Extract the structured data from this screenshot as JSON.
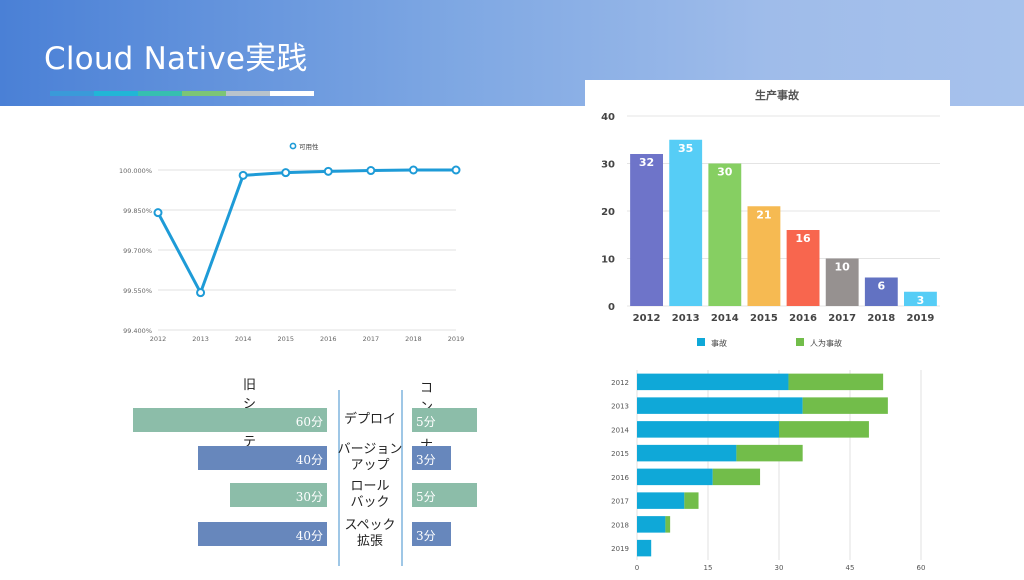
{
  "header": {
    "title": "Cloud Native実践"
  },
  "colors": {
    "stripes": [
      "#3a9ad9",
      "#21b6d6",
      "#36bfb0",
      "#7cc576",
      "#b8c3cc",
      "#ffffff"
    ]
  },
  "chart_data": [
    {
      "type": "line",
      "legend": [
        "可用性"
      ],
      "x": [
        "2012",
        "2013",
        "2014",
        "2015",
        "2016",
        "2017",
        "2018",
        "2019"
      ],
      "series": [
        {
          "name": "可用性",
          "values": [
            99.84,
            99.54,
            99.98,
            99.99,
            99.995,
            99.998,
            100.0,
            100.0
          ],
          "color": "#1e9bd7"
        }
      ],
      "ylim": [
        99.4,
        100.0
      ],
      "yticks": [
        "99.400%",
        "99.550%",
        "99.700%",
        "99.850%",
        "100.000%"
      ],
      "grid": true
    },
    {
      "type": "bar",
      "title": "生产事故",
      "categories": [
        "2012",
        "2013",
        "2014",
        "2015",
        "2016",
        "2017",
        "2018",
        "2019"
      ],
      "values": [
        32,
        35,
        30,
        21,
        16,
        10,
        6,
        3
      ],
      "colors": [
        "#6e74c9",
        "#56cdf6",
        "#86cf62",
        "#f6ba52",
        "#f8664e",
        "#969190",
        "#6272c2",
        "#56cdf6"
      ],
      "ylim": [
        0,
        40
      ],
      "yticks": [
        "0",
        "10",
        "20",
        "30",
        "40"
      ],
      "grid": true
    },
    {
      "type": "bar",
      "orientation": "horizontal",
      "stacked": true,
      "categories": [
        "2012",
        "2013",
        "2014",
        "2015",
        "2016",
        "2017",
        "2018",
        "2019"
      ],
      "legend": [
        "事故",
        "人为事故"
      ],
      "series": [
        {
          "name": "事故",
          "values": [
            32,
            35,
            30,
            21,
            16,
            10,
            6,
            3
          ],
          "color": "#0fa8d8"
        },
        {
          "name": "人为事故",
          "values": [
            20,
            18,
            19,
            14,
            10,
            3,
            1,
            0
          ],
          "color": "#72bd4a"
        }
      ],
      "xlim": [
        0,
        60
      ],
      "xticks": [
        "0",
        "15",
        "30",
        "45",
        "60"
      ],
      "grid": true
    },
    {
      "type": "bar",
      "orientation": "horizontal",
      "column_titles": {
        "left": "旧システム",
        "right": "コンテナ"
      },
      "steps": [
        {
          "name": "デプロイ",
          "old": "60分",
          "old_value": 60,
          "new": "5分",
          "new_value": 5
        },
        {
          "name": "バージョン\nアップ",
          "old": "40分",
          "old_value": 40,
          "new": "3分",
          "new_value": 3
        },
        {
          "name": "ロール\nバック",
          "old": "30分",
          "old_value": 30,
          "new": "5分",
          "new_value": 5
        },
        {
          "name": "スペック\n拡張",
          "old": "40分",
          "old_value": 40,
          "new": "3分",
          "new_value": 3
        }
      ],
      "colors": {
        "teal": "#8cbda9",
        "blue": "#6787bc"
      }
    }
  ]
}
